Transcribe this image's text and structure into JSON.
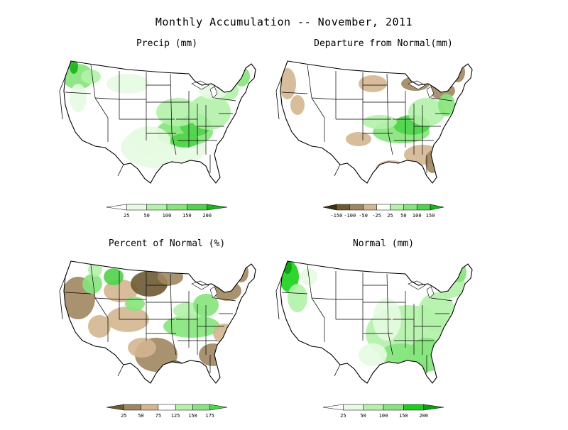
{
  "title": "Monthly Accumulation -- November, 2011",
  "panels": [
    {
      "title": "Precip (mm)",
      "palette": "green",
      "legend": {
        "colors": [
          "#ffffff",
          "#e6fbe1",
          "#b3f2a8",
          "#85e47b",
          "#4fd34a",
          "#19b31a"
        ],
        "ticks": [
          "25",
          "50",
          "100",
          "150",
          "200"
        ]
      }
    },
    {
      "title": "Departure from Normal(mm)",
      "palette": "diverging",
      "legend": {
        "colors": [
          "#3b3010",
          "#6e5a32",
          "#a08660",
          "#d3b690",
          "#ffffff",
          "#b3f2a8",
          "#85e47b",
          "#4fd34a",
          "#19b31a"
        ],
        "ticks": [
          "-150",
          "-100",
          "-50",
          "-25",
          "25",
          "50",
          "100",
          "150"
        ]
      }
    },
    {
      "title": "Percent of Normal (%)",
      "palette": "percent",
      "legend": {
        "colors": [
          "#6e5a32",
          "#a08660",
          "#d3b690",
          "#ffffff",
          "#b3f2a8",
          "#85e47b",
          "#4fd34a"
        ],
        "ticks": [
          "25",
          "50",
          "75",
          "125",
          "150",
          "175"
        ]
      }
    },
    {
      "title": "Normal (mm)",
      "palette": "normal",
      "legend": {
        "colors": [
          "#ffffff",
          "#e6fbe1",
          "#b3f2a8",
          "#85e47b",
          "#19d11a",
          "#0b9e10"
        ],
        "ticks": [
          "25",
          "50",
          "100",
          "150",
          "200"
        ]
      }
    }
  ]
}
